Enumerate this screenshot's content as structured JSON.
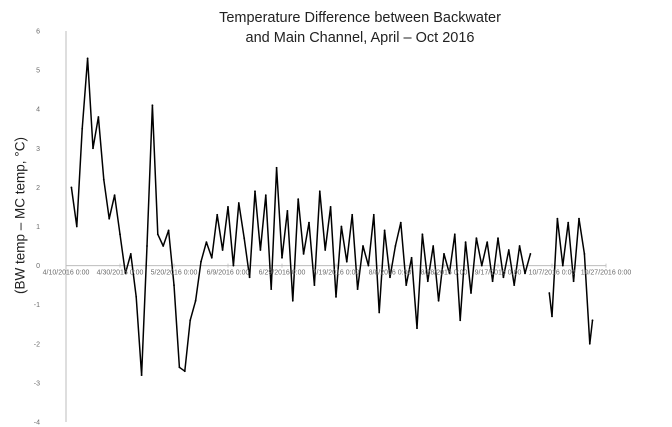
{
  "chart_data": {
    "type": "line",
    "title": [
      "Temperature Difference between Backwater",
      "and Main Channel, April – Oct 2016"
    ],
    "ylabel": "(BW temp – MC temp, °C)",
    "xlabel": "",
    "ylim": [
      -4,
      6
    ],
    "yticks": [
      "6",
      "5",
      "4",
      "3",
      "2",
      "1",
      "0",
      "-1",
      "-2",
      "-3",
      "-4"
    ],
    "xticks": [
      "4/10/2016 0:00",
      "4/30/2016 0:00",
      "5/20/2016 0:00",
      "6/9/2016 0:00",
      "6/29/2016 0:00",
      "7/19/2016 0:00",
      "8/8/2016 0:00",
      "8/28/2016 0:00",
      "9/17/2016 0:00",
      "10/7/2016 0:00",
      "10/27/2016 0:00"
    ],
    "series": [
      {
        "color": "#000000",
        "points": [
          [
            "4/12/2016",
            2.0
          ],
          [
            "4/14/2016",
            1.0
          ],
          [
            "4/16/2016",
            3.5
          ],
          [
            "4/18/2016",
            5.3
          ],
          [
            "4/20/2016",
            3.0
          ],
          [
            "4/22/2016",
            3.8
          ],
          [
            "4/24/2016",
            2.2
          ],
          [
            "4/26/2016",
            1.2
          ],
          [
            "4/28/2016",
            1.8
          ],
          [
            "4/30/2016",
            0.8
          ],
          [
            "5/2/2016",
            -0.2
          ],
          [
            "5/4/2016",
            0.3
          ],
          [
            "5/6/2016",
            -0.8
          ],
          [
            "5/8/2016",
            -2.8
          ],
          [
            "5/10/2016",
            0.5
          ],
          [
            "5/12/2016",
            4.1
          ],
          [
            "5/14/2016",
            0.8
          ],
          [
            "5/16/2016",
            0.5
          ],
          [
            "5/18/2016",
            0.9
          ],
          [
            "5/20/2016",
            -0.5
          ],
          [
            "5/22/2016",
            -2.6
          ],
          [
            "5/24/2016",
            -2.7
          ],
          [
            "5/26/2016",
            -1.4
          ],
          [
            "5/28/2016",
            -0.9
          ],
          [
            "5/30/2016",
            0.1
          ],
          [
            "6/1/2016",
            0.6
          ],
          [
            "6/3/2016",
            0.2
          ],
          [
            "6/5/2016",
            1.3
          ],
          [
            "6/7/2016",
            0.4
          ],
          [
            "6/9/2016",
            1.5
          ],
          [
            "6/11/2016",
            0.0
          ],
          [
            "6/13/2016",
            1.6
          ],
          [
            "6/15/2016",
            0.7
          ],
          [
            "6/17/2016",
            -0.3
          ],
          [
            "6/19/2016",
            1.9
          ],
          [
            "6/21/2016",
            0.4
          ],
          [
            "6/23/2016",
            1.8
          ],
          [
            "6/25/2016",
            -0.6
          ],
          [
            "6/27/2016",
            2.5
          ],
          [
            "6/29/2016",
            0.2
          ],
          [
            "7/1/2016",
            1.4
          ],
          [
            "7/3/2016",
            -0.9
          ],
          [
            "7/5/2016",
            1.7
          ],
          [
            "7/7/2016",
            0.3
          ],
          [
            "7/9/2016",
            1.1
          ],
          [
            "7/11/2016",
            -0.5
          ],
          [
            "7/13/2016",
            1.9
          ],
          [
            "7/15/2016",
            0.4
          ],
          [
            "7/17/2016",
            1.5
          ],
          [
            "7/19/2016",
            -0.8
          ],
          [
            "7/21/2016",
            1.0
          ],
          [
            "7/23/2016",
            0.1
          ],
          [
            "7/25/2016",
            1.3
          ],
          [
            "7/27/2016",
            -0.6
          ],
          [
            "7/29/2016",
            0.5
          ],
          [
            "7/31/2016",
            0.0
          ],
          [
            "8/2/2016",
            1.3
          ],
          [
            "8/4/2016",
            -1.2
          ],
          [
            "8/6/2016",
            0.9
          ],
          [
            "8/8/2016",
            -0.3
          ],
          [
            "8/10/2016",
            0.5
          ],
          [
            "8/12/2016",
            1.1
          ],
          [
            "8/14/2016",
            -0.5
          ],
          [
            "8/16/2016",
            0.2
          ],
          [
            "8/18/2016",
            -1.6
          ],
          [
            "8/20/2016",
            0.8
          ],
          [
            "8/22/2016",
            -0.4
          ],
          [
            "8/24/2016",
            0.5
          ],
          [
            "8/26/2016",
            -0.9
          ],
          [
            "8/28/2016",
            0.3
          ],
          [
            "8/30/2016",
            -0.2
          ],
          [
            "9/1/2016",
            0.8
          ],
          [
            "9/3/2016",
            -1.4
          ],
          [
            "9/5/2016",
            0.6
          ],
          [
            "9/7/2016",
            -0.7
          ],
          [
            "9/9/2016",
            0.7
          ],
          [
            "9/11/2016",
            0.0
          ],
          [
            "9/13/2016",
            0.6
          ],
          [
            "9/15/2016",
            -0.4
          ],
          [
            "9/17/2016",
            0.7
          ],
          [
            "9/19/2016",
            -0.3
          ],
          [
            "9/21/2016",
            0.4
          ],
          [
            "9/23/2016",
            -0.5
          ],
          [
            "9/25/2016",
            0.5
          ],
          [
            "9/27/2016",
            -0.2
          ],
          [
            "9/29/2016",
            0.3
          ]
        ]
      },
      {
        "color": "#000000",
        "points": [
          [
            "10/6/2016",
            -0.7
          ],
          [
            "10/7/2016",
            -1.3
          ],
          [
            "10/9/2016",
            1.2
          ],
          [
            "10/11/2016",
            0.0
          ],
          [
            "10/13/2016",
            1.1
          ],
          [
            "10/15/2016",
            -0.4
          ],
          [
            "10/17/2016",
            1.2
          ],
          [
            "10/19/2016",
            0.3
          ],
          [
            "10/21/2016",
            -2.0
          ],
          [
            "10/22/2016",
            -1.4
          ]
        ]
      }
    ],
    "grid": false,
    "legend": "none"
  }
}
